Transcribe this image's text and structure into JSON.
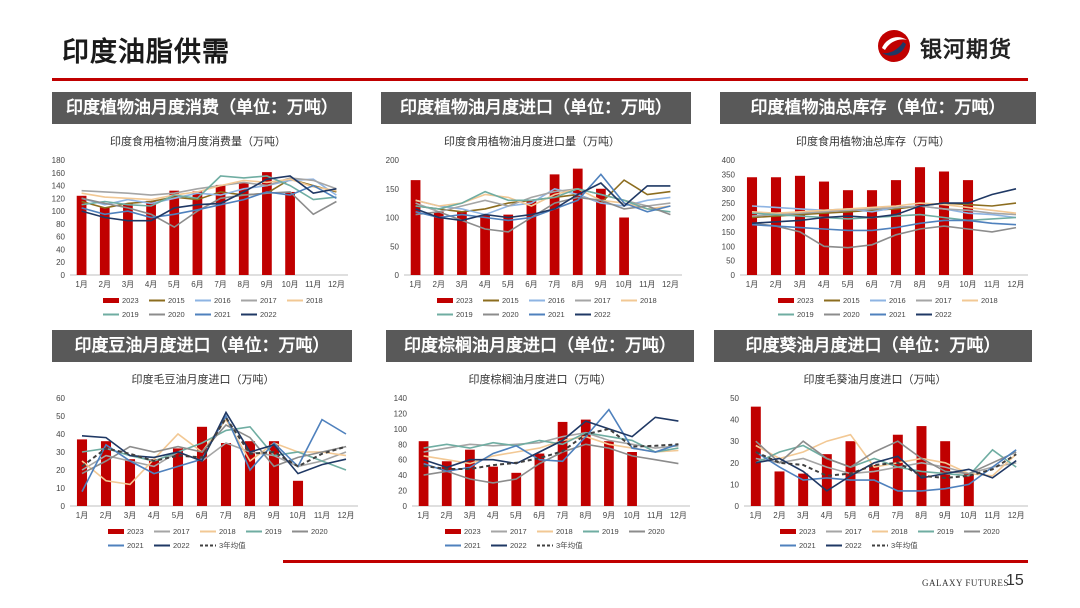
{
  "header": {
    "title": "印度油脂供需",
    "brand_name": "银河期货"
  },
  "footer": {
    "brand": "GALAXY FUTURES",
    "page_number": "15"
  },
  "colors": {
    "accent": "#c00000",
    "panel_bg": "#595959",
    "2023": "#c00000",
    "2015": "#8c6d1f",
    "2016": "#8eb4e3",
    "2017": "#a5a5a5",
    "2018": "#f2c894",
    "2019": "#6fada2",
    "2020": "#8c8c8c",
    "2021": "#4f81bd",
    "2022": "#1f3864",
    "avg": "#404040"
  },
  "panels": [
    {
      "title": "印度植物油月度消费（单位：万吨）"
    },
    {
      "title": "印度植物油月度进口（单位：万吨）"
    },
    {
      "title": "印度植物油总库存（单位：万吨）"
    },
    {
      "title": "印度豆油月度进口（单位：万吨）"
    },
    {
      "title": "印度棕榈油月度进口（单位：万吨）"
    },
    {
      "title": "印度葵油月度进口（单位：万吨）"
    }
  ],
  "chart_data": [
    {
      "type": "bar+line",
      "title": "印度食用植物油月度消费量（万吨）",
      "categories": [
        "1月",
        "2月",
        "3月",
        "4月",
        "5月",
        "6月",
        "7月",
        "8月",
        "9月",
        "10月",
        "11月",
        "12月"
      ],
      "ylim": [
        0,
        180
      ],
      "yticks": [
        0,
        20,
        40,
        60,
        80,
        100,
        120,
        140,
        160,
        180
      ],
      "bar": {
        "name": "2023",
        "values": [
          124,
          106,
          112,
          116,
          132,
          131,
          141,
          144,
          161,
          130
        ]
      },
      "series": [
        {
          "name": "2015",
          "values": [
            115,
            105,
            112,
            115,
            122,
            118,
            130,
            125,
            128,
            150,
            140,
            130
          ]
        },
        {
          "name": "2016",
          "values": [
            120,
            110,
            118,
            112,
            120,
            128,
            125,
            135,
            140,
            148,
            150,
            125
          ]
        },
        {
          "name": "2017",
          "values": [
            132,
            130,
            128,
            125,
            128,
            135,
            140,
            145,
            140,
            152,
            148,
            135
          ]
        },
        {
          "name": "2018",
          "values": [
            128,
            122,
            120,
            118,
            125,
            130,
            140,
            148,
            145,
            150,
            138,
            132
          ]
        },
        {
          "name": "2019",
          "values": [
            110,
            115,
            110,
            108,
            125,
            120,
            155,
            152,
            155,
            140,
            118,
            122
          ]
        },
        {
          "name": "2020",
          "values": [
            120,
            112,
            105,
            95,
            75,
            100,
            120,
            125,
            128,
            130,
            95,
            115
          ]
        },
        {
          "name": "2021",
          "values": [
            105,
            95,
            100,
            90,
            95,
            102,
            110,
            118,
            130,
            125,
            140,
            120
          ]
        },
        {
          "name": "2022",
          "values": [
            100,
            90,
            85,
            85,
            105,
            110,
            112,
            130,
            150,
            155,
            128,
            135
          ]
        }
      ],
      "legend": [
        "2023",
        "2015",
        "2016",
        "2017",
        "2018",
        "2019",
        "2020",
        "2021",
        "2022"
      ]
    },
    {
      "type": "bar+line",
      "title": "印度食用植物油月度进口量（万吨）",
      "categories": [
        "1月",
        "2月",
        "3月",
        "4月",
        "5月",
        "6月",
        "7月",
        "8月",
        "9月",
        "10月",
        "11月",
        "12月"
      ],
      "ylim": [
        0,
        200
      ],
      "yticks": [
        0,
        50,
        100,
        150,
        200
      ],
      "bar": {
        "name": "2023",
        "values": [
          165,
          110,
          110,
          104,
          105,
          130,
          175,
          185,
          150,
          100
        ]
      },
      "series": [
        {
          "name": "2015",
          "values": [
            120,
            115,
            110,
            115,
            125,
            130,
            135,
            140,
            125,
            165,
            140,
            145
          ]
        },
        {
          "name": "2016",
          "values": [
            130,
            120,
            115,
            105,
            120,
            125,
            150,
            140,
            125,
            120,
            130,
            135
          ]
        },
        {
          "name": "2017",
          "values": [
            125,
            110,
            120,
            130,
            120,
            135,
            145,
            150,
            140,
            130,
            120,
            125
          ]
        },
        {
          "name": "2018",
          "values": [
            130,
            120,
            125,
            140,
            135,
            120,
            140,
            150,
            130,
            125,
            115,
            120
          ]
        },
        {
          "name": "2019",
          "values": [
            120,
            115,
            125,
            145,
            130,
            130,
            135,
            150,
            140,
            130,
            115,
            110
          ]
        },
        {
          "name": "2020",
          "values": [
            105,
            110,
            95,
            80,
            75,
            100,
            125,
            135,
            130,
            115,
            120,
            105
          ]
        },
        {
          "name": "2021",
          "values": [
            110,
            100,
            105,
            100,
            95,
            100,
            115,
            130,
            175,
            125,
            110,
            120
          ]
        },
        {
          "name": "2022",
          "values": [
            115,
            100,
            95,
            105,
            100,
            105,
            115,
            140,
            160,
            120,
            155,
            155
          ]
        }
      ],
      "legend": [
        "2023",
        "2015",
        "2016",
        "2017",
        "2018",
        "2019",
        "2020",
        "2021",
        "2022"
      ]
    },
    {
      "type": "bar+line",
      "title": "印度食用植物油总库存（万吨）",
      "categories": [
        "1月",
        "2月",
        "3月",
        "4月",
        "5月",
        "6月",
        "7月",
        "8月",
        "9月",
        "10月",
        "11月",
        "12月"
      ],
      "ylim": [
        0,
        400
      ],
      "yticks": [
        0,
        50,
        100,
        150,
        200,
        250,
        300,
        350,
        400
      ],
      "bar": {
        "name": "2023",
        "values": [
          340,
          340,
          345,
          325,
          295,
          295,
          330,
          375,
          360,
          330
        ]
      },
      "series": [
        {
          "name": "2015",
          "values": [
            200,
            205,
            210,
            215,
            220,
            225,
            230,
            240,
            250,
            245,
            240,
            250
          ]
        },
        {
          "name": "2016",
          "values": [
            240,
            235,
            230,
            225,
            230,
            220,
            235,
            240,
            230,
            215,
            210,
            200
          ]
        },
        {
          "name": "2017",
          "values": [
            205,
            210,
            215,
            220,
            225,
            230,
            235,
            240,
            230,
            225,
            215,
            210
          ]
        },
        {
          "name": "2018",
          "values": [
            220,
            215,
            220,
            225,
            230,
            235,
            240,
            250,
            245,
            235,
            225,
            215
          ]
        },
        {
          "name": "2019",
          "values": [
            215,
            210,
            205,
            200,
            195,
            200,
            205,
            210,
            200,
            190,
            195,
            200
          ]
        },
        {
          "name": "2020",
          "values": [
            180,
            170,
            150,
            100,
            95,
            105,
            140,
            160,
            170,
            160,
            150,
            165
          ]
        },
        {
          "name": "2021",
          "values": [
            175,
            170,
            165,
            160,
            155,
            155,
            165,
            180,
            190,
            190,
            180,
            175
          ]
        },
        {
          "name": "2022",
          "values": [
            180,
            185,
            190,
            200,
            205,
            200,
            210,
            240,
            250,
            250,
            280,
            300
          ]
        }
      ],
      "legend": [
        "2023",
        "2015",
        "2016",
        "2017",
        "2018",
        "2019",
        "2020",
        "2021",
        "2022"
      ]
    },
    {
      "type": "bar+line",
      "title": "印度毛豆油月度进口（万吨）",
      "categories": [
        "1月",
        "2月",
        "3月",
        "4月",
        "5月",
        "6月",
        "7月",
        "8月",
        "9月",
        "10月",
        "11月",
        "12月"
      ],
      "ylim": [
        0,
        60
      ],
      "yticks": [
        0,
        10,
        20,
        30,
        40,
        50,
        60
      ],
      "bar": {
        "name": "2023",
        "values": [
          37,
          36,
          26,
          26,
          32,
          44,
          35,
          36,
          36,
          14
        ]
      },
      "series": [
        {
          "name": "2017",
          "values": [
            20,
            28,
            25,
            22,
            30,
            25,
            35,
            30,
            28,
            22,
            25,
            30
          ]
        },
        {
          "name": "2018",
          "values": [
            25,
            14,
            12,
            26,
            40,
            30,
            48,
            25,
            35,
            30,
            30,
            28
          ]
        },
        {
          "name": "2019",
          "values": [
            30,
            32,
            28,
            25,
            30,
            35,
            42,
            44,
            28,
            30,
            25,
            20
          ]
        },
        {
          "name": "2020",
          "values": [
            18,
            25,
            33,
            30,
            33,
            30,
            45,
            38,
            22,
            27,
            30,
            33
          ]
        },
        {
          "name": "2021",
          "values": [
            8,
            34,
            25,
            18,
            22,
            26,
            50,
            20,
            35,
            22,
            48,
            40
          ]
        },
        {
          "name": "2022",
          "values": [
            39,
            38,
            28,
            27,
            30,
            25,
            52,
            30,
            34,
            18,
            23,
            26
          ]
        }
      ],
      "avg": {
        "name": "3年均值",
        "values": [
          22,
          32,
          29,
          25,
          28,
          27,
          49,
          29,
          30,
          22,
          29,
          33
        ]
      },
      "legend": [
        "2023",
        "2017",
        "2018",
        "2019",
        "2020",
        "2021",
        "2022",
        "3年均值"
      ]
    },
    {
      "type": "bar+line",
      "title": "印度棕榈油月度进口（万吨）",
      "categories": [
        "1月",
        "2月",
        "3月",
        "4月",
        "5月",
        "6月",
        "7月",
        "8月",
        "9月",
        "10月",
        "11月",
        "12月"
      ],
      "ylim": [
        0,
        140
      ],
      "yticks": [
        0,
        20,
        40,
        60,
        80,
        100,
        120,
        140
      ],
      "bar": {
        "name": "2023",
        "values": [
          84,
          58,
          73,
          51,
          43,
          68,
          109,
          112,
          84,
          70
        ]
      },
      "series": [
        {
          "name": "2017",
          "values": [
            70,
            75,
            80,
            78,
            80,
            82,
            90,
            95,
            85,
            80,
            75,
            78
          ]
        },
        {
          "name": "2018",
          "values": [
            65,
            60,
            55,
            65,
            70,
            75,
            85,
            90,
            80,
            75,
            70,
            72
          ]
        },
        {
          "name": "2019",
          "values": [
            75,
            80,
            75,
            82,
            78,
            85,
            80,
            95,
            90,
            85,
            70,
            75
          ]
        },
        {
          "name": "2020",
          "values": [
            40,
            45,
            35,
            30,
            35,
            55,
            70,
            80,
            75,
            65,
            60,
            55
          ]
        },
        {
          "name": "2021",
          "values": [
            55,
            45,
            50,
            68,
            78,
            60,
            58,
            90,
            125,
            75,
            70,
            80
          ]
        },
        {
          "name": "2022",
          "values": [
            60,
            50,
            60,
            60,
            55,
            70,
            85,
            110,
            100,
            90,
            115,
            110
          ]
        }
      ],
      "avg": {
        "name": "3年均值",
        "values": [
          52,
          48,
          48,
          53,
          56,
          62,
          71,
          93,
          100,
          77,
          78,
          80
        ]
      },
      "legend": [
        "2023",
        "2017",
        "2018",
        "2019",
        "2020",
        "2021",
        "2022",
        "3年均值"
      ]
    },
    {
      "type": "bar+line",
      "title": "印度毛葵油月度进口（万吨）",
      "categories": [
        "1月",
        "2月",
        "3月",
        "4月",
        "5月",
        "6月",
        "7月",
        "8月",
        "9月",
        "10月",
        "11月",
        "12月"
      ],
      "ylim": [
        0,
        50
      ],
      "yticks": [
        0,
        10,
        20,
        30,
        40,
        50
      ],
      "bar": {
        "name": "2023",
        "values": [
          46,
          16,
          15,
          24,
          30,
          19,
          33,
          37,
          30,
          15
        ]
      },
      "series": [
        {
          "name": "2017",
          "values": [
            22,
            20,
            22,
            18,
            15,
            16,
            18,
            20,
            18,
            15,
            18,
            20
          ]
        },
        {
          "name": "2018",
          "values": [
            28,
            22,
            25,
            30,
            33,
            18,
            20,
            22,
            20,
            15,
            14,
            24
          ]
        },
        {
          "name": "2019",
          "values": [
            20,
            25,
            28,
            22,
            18,
            22,
            18,
            16,
            15,
            14,
            26,
            18
          ]
        },
        {
          "name": "2020",
          "values": [
            30,
            20,
            30,
            22,
            18,
            25,
            30,
            22,
            16,
            15,
            20,
            25
          ]
        },
        {
          "name": "2021",
          "values": [
            25,
            18,
            12,
            13,
            12,
            12,
            7,
            7,
            8,
            10,
            18,
            26
          ]
        },
        {
          "name": "2022",
          "values": [
            20,
            22,
            16,
            7,
            14,
            20,
            23,
            13,
            15,
            17,
            13,
            21
          ]
        }
      ],
      "avg": {
        "name": "3年均值",
        "values": [
          25,
          20,
          19,
          14,
          15,
          19,
          20,
          14,
          13,
          14,
          17,
          24
        ]
      },
      "legend": [
        "2023",
        "2017",
        "2018",
        "2019",
        "2020",
        "2021",
        "2022",
        "3年均值"
      ]
    }
  ]
}
